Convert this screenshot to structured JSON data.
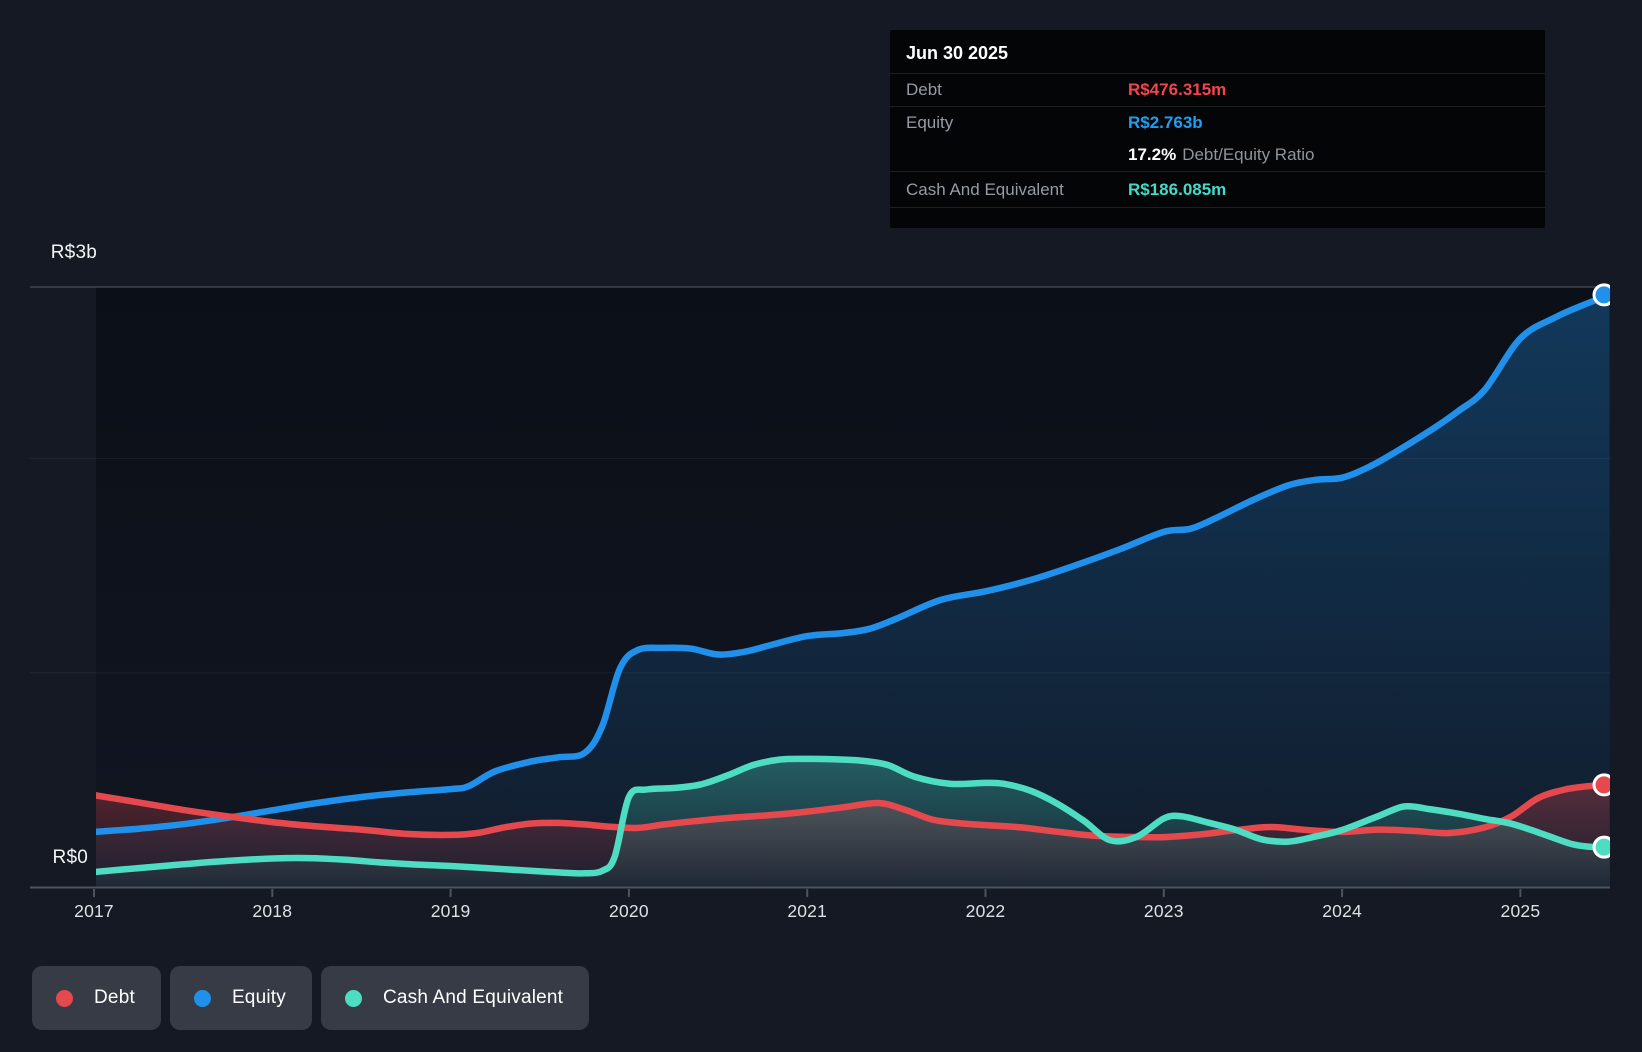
{
  "tooltip": {
    "date": "Jun 30 2025",
    "rows": [
      {
        "label": "Debt",
        "value": "R$476.315m"
      },
      {
        "label": "Equity",
        "value": "R$2.763b"
      }
    ],
    "ratio": {
      "value": "17.2%",
      "label": "Debt/Equity Ratio"
    },
    "cash_row": {
      "label": "Cash And Equivalent",
      "value": "R$186.085m"
    }
  },
  "colors": {
    "debt": "#e5484d",
    "equity": "#2090ea",
    "cash": "#4edcc2",
    "debt_value_text": "#f5444c",
    "equity_value_text": "#1f9ff2",
    "cash_value_text": "#40dcc8",
    "page_background": "#141923",
    "legend_pill_background": "#363b45",
    "axis_line": "#4d545c",
    "plot_top_line": "#3e4550"
  },
  "chart_data": {
    "type": "area",
    "unit": "R$ millions",
    "x_axis": {
      "tick_labels": [
        "2017",
        "2018",
        "2019",
        "2020",
        "2021",
        "2022",
        "2023",
        "2024",
        "2025"
      ],
      "start_year": 2017,
      "end_year": 2025.5
    },
    "y_axis": {
      "top_label": "R$3b",
      "bottom_label": "R$0",
      "plot_top_value_m": 2800,
      "unlabeled_gridlines_m": [
        1000,
        2000
      ]
    },
    "series": [
      {
        "name": "Debt",
        "color": "#e5484d",
        "points": [
          [
            2017.0,
            429
          ],
          [
            2017.25,
            395
          ],
          [
            2017.5,
            360
          ],
          [
            2017.75,
            330
          ],
          [
            2018.0,
            303
          ],
          [
            2018.25,
            283
          ],
          [
            2018.5,
            268
          ],
          [
            2018.75,
            248
          ],
          [
            2019.0,
            243
          ],
          [
            2019.15,
            252
          ],
          [
            2019.3,
            278
          ],
          [
            2019.45,
            296
          ],
          [
            2019.6,
            299
          ],
          [
            2019.75,
            292
          ],
          [
            2019.9,
            281
          ],
          [
            2020.05,
            276
          ],
          [
            2020.2,
            292
          ],
          [
            2020.4,
            310
          ],
          [
            2020.6,
            325
          ],
          [
            2020.8,
            336
          ],
          [
            2021.0,
            352
          ],
          [
            2021.2,
            372
          ],
          [
            2021.4,
            392
          ],
          [
            2021.55,
            360
          ],
          [
            2021.7,
            315
          ],
          [
            2021.85,
            298
          ],
          [
            2022.0,
            289
          ],
          [
            2022.2,
            278
          ],
          [
            2022.4,
            258
          ],
          [
            2022.6,
            240
          ],
          [
            2022.8,
            234
          ],
          [
            2023.0,
            233
          ],
          [
            2023.2,
            245
          ],
          [
            2023.4,
            265
          ],
          [
            2023.6,
            280
          ],
          [
            2023.8,
            266
          ],
          [
            2024.0,
            257
          ],
          [
            2024.2,
            268
          ],
          [
            2024.4,
            262
          ],
          [
            2024.6,
            252
          ],
          [
            2024.8,
            278
          ],
          [
            2024.95,
            330
          ],
          [
            2025.1,
            415
          ],
          [
            2025.25,
            455
          ],
          [
            2025.4,
            472
          ],
          [
            2025.5,
            476.315
          ]
        ]
      },
      {
        "name": "Equity",
        "color": "#2090ea",
        "points": [
          [
            2017.0,
            257
          ],
          [
            2017.25,
            272
          ],
          [
            2017.5,
            293
          ],
          [
            2017.75,
            323
          ],
          [
            2018.0,
            358
          ],
          [
            2018.25,
            392
          ],
          [
            2018.5,
            420
          ],
          [
            2018.75,
            441
          ],
          [
            2019.0,
            457
          ],
          [
            2019.1,
            470
          ],
          [
            2019.25,
            540
          ],
          [
            2019.45,
            585
          ],
          [
            2019.6,
            605
          ],
          [
            2019.75,
            625
          ],
          [
            2019.85,
            750
          ],
          [
            2019.95,
            1020
          ],
          [
            2020.05,
            1106
          ],
          [
            2020.2,
            1116
          ],
          [
            2020.35,
            1112
          ],
          [
            2020.5,
            1085
          ],
          [
            2020.65,
            1098
          ],
          [
            2020.8,
            1130
          ],
          [
            2021.0,
            1171
          ],
          [
            2021.2,
            1185
          ],
          [
            2021.35,
            1205
          ],
          [
            2021.5,
            1252
          ],
          [
            2021.75,
            1340
          ],
          [
            2022.0,
            1380
          ],
          [
            2022.25,
            1432
          ],
          [
            2022.5,
            1500
          ],
          [
            2022.75,
            1575
          ],
          [
            2023.0,
            1657
          ],
          [
            2023.15,
            1672
          ],
          [
            2023.3,
            1725
          ],
          [
            2023.5,
            1806
          ],
          [
            2023.7,
            1875
          ],
          [
            2023.85,
            1900
          ],
          [
            2024.0,
            1910
          ],
          [
            2024.15,
            1960
          ],
          [
            2024.3,
            2030
          ],
          [
            2024.5,
            2133
          ],
          [
            2024.65,
            2220
          ],
          [
            2024.8,
            2320
          ],
          [
            2025.0,
            2560
          ],
          [
            2025.2,
            2660
          ],
          [
            2025.35,
            2715
          ],
          [
            2025.5,
            2763
          ]
        ]
      },
      {
        "name": "Cash And Equivalent",
        "color": "#4edcc2",
        "points": [
          [
            2017.0,
            70
          ],
          [
            2017.25,
            88
          ],
          [
            2017.5,
            106
          ],
          [
            2017.75,
            122
          ],
          [
            2018.0,
            133
          ],
          [
            2018.2,
            135
          ],
          [
            2018.4,
            128
          ],
          [
            2018.6,
            115
          ],
          [
            2018.8,
            105
          ],
          [
            2019.0,
            98
          ],
          [
            2019.2,
            88
          ],
          [
            2019.4,
            78
          ],
          [
            2019.6,
            68
          ],
          [
            2019.75,
            64
          ],
          [
            2019.85,
            75
          ],
          [
            2019.92,
            140
          ],
          [
            2020.0,
            420
          ],
          [
            2020.1,
            455
          ],
          [
            2020.25,
            462
          ],
          [
            2020.4,
            478
          ],
          [
            2020.55,
            520
          ],
          [
            2020.7,
            570
          ],
          [
            2020.85,
            595
          ],
          [
            2021.0,
            598
          ],
          [
            2021.15,
            596
          ],
          [
            2021.3,
            590
          ],
          [
            2021.45,
            570
          ],
          [
            2021.6,
            515
          ],
          [
            2021.8,
            482
          ],
          [
            2022.0,
            486
          ],
          [
            2022.1,
            482
          ],
          [
            2022.25,
            450
          ],
          [
            2022.4,
            390
          ],
          [
            2022.55,
            310
          ],
          [
            2022.7,
            218
          ],
          [
            2022.85,
            235
          ],
          [
            2023.0,
            320
          ],
          [
            2023.1,
            330
          ],
          [
            2023.25,
            300
          ],
          [
            2023.4,
            268
          ],
          [
            2023.55,
            222
          ],
          [
            2023.7,
            212
          ],
          [
            2023.85,
            235
          ],
          [
            2024.0,
            266
          ],
          [
            2024.2,
            330
          ],
          [
            2024.35,
            376
          ],
          [
            2024.5,
            362
          ],
          [
            2024.65,
            342
          ],
          [
            2024.8,
            318
          ],
          [
            2024.95,
            295
          ],
          [
            2025.1,
            255
          ],
          [
            2025.2,
            225
          ],
          [
            2025.3,
            198
          ],
          [
            2025.4,
            187
          ],
          [
            2025.5,
            186.085
          ]
        ]
      }
    ]
  }
}
